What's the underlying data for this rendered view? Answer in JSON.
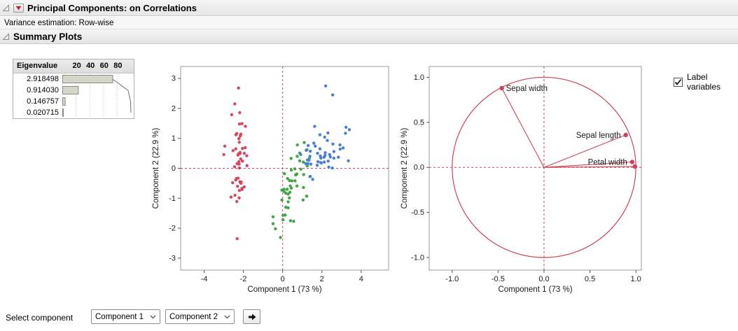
{
  "header": {
    "title": "Principal Components: on Correlations",
    "subtitle": "Variance estimation: Row-wise"
  },
  "summary": {
    "title": "Summary Plots"
  },
  "eigen": {
    "header_label": "Eigenvalue",
    "scale_max": 100,
    "scale_ticks": [
      "20",
      "40",
      "60",
      "80"
    ],
    "rows": [
      {
        "value": "2.918498",
        "pct": 72.96
      },
      {
        "value": "0.914030",
        "pct": 22.85
      },
      {
        "value": "0.146757",
        "pct": 3.67
      },
      {
        "value": "0.020715",
        "pct": 0.52
      }
    ],
    "cumulative_pct": [
      72.96,
      95.81,
      99.48,
      100
    ]
  },
  "controls": {
    "label_variables": "Label variables",
    "label_variables_checked": true
  },
  "footer": {
    "select_component_label": "Select component",
    "dropdown1": "Component 1",
    "dropdown2": "Component 2"
  },
  "chart_data": [
    {
      "id": "score-plot",
      "type": "scatter",
      "xlabel": "Component 1  (73 %)",
      "ylabel": "Component 2  (22.9 %)",
      "xlim": [
        -5.2,
        5.4
      ],
      "ylim": [
        -3.4,
        3.4
      ],
      "xticks": [
        -4,
        -2,
        0,
        2,
        4
      ],
      "xtick_labels": [
        "-4",
        "-2",
        "0",
        "2",
        "4"
      ],
      "yticks": [
        3,
        2,
        1,
        0,
        -1,
        -2,
        -3
      ],
      "ytick_labels": [
        "3",
        "2",
        "1",
        "0",
        "-1",
        "-2",
        "-3"
      ],
      "accent_color": "#cf4257",
      "reference_lines": {
        "x": 0,
        "y": 0,
        "style": "dashed"
      },
      "series": [
        {
          "name": "group-red",
          "color": "#d4495e",
          "points": [
            [
              -2.26,
              0.48
            ],
            [
              -2.08,
              -0.67
            ],
            [
              -2.36,
              -0.34
            ],
            [
              -2.3,
              -0.6
            ],
            [
              -2.39,
              0.65
            ],
            [
              -2.07,
              1.49
            ],
            [
              -2.45,
              0.05
            ],
            [
              -2.23,
              0.22
            ],
            [
              -2.34,
              -1.11
            ],
            [
              -2.18,
              -0.45
            ],
            [
              -2.16,
              1.08
            ],
            [
              -2.32,
              0.16
            ],
            [
              -2.21,
              -0.74
            ],
            [
              -2.63,
              -0.96
            ],
            [
              -2.19,
              1.86
            ],
            [
              -2.25,
              2.68
            ],
            [
              -2.2,
              1.48
            ],
            [
              -2.18,
              0.49
            ],
            [
              -1.9,
              1.4
            ],
            [
              -2.34,
              1.16
            ],
            [
              -1.91,
              0.69
            ],
            [
              -2.21,
              0.87
            ],
            [
              -3.0,
              0.46
            ],
            [
              -1.82,
              0.09
            ],
            [
              -2.22,
              0.14
            ],
            [
              -1.96,
              -0.62
            ],
            [
              -2.05,
              0.24
            ],
            [
              -2.17,
              0.53
            ],
            [
              -2.14,
              0.31
            ],
            [
              -2.27,
              -0.33
            ],
            [
              -2.13,
              -0.5
            ],
            [
              -1.83,
              0.42
            ],
            [
              -2.6,
              1.79
            ],
            [
              -2.44,
              2.15
            ],
            [
              -2.11,
              -0.46
            ],
            [
              -2.22,
              -0.99
            ],
            [
              -2.05,
              0.66
            ],
            [
              -2.53,
              0.59
            ],
            [
              -2.43,
              -0.9
            ],
            [
              -2.95,
              0.74
            ],
            [
              -2.28,
              0.44
            ],
            [
              -2.32,
              -2.35
            ],
            [
              -2.55,
              -0.48
            ],
            [
              -1.96,
              0.5
            ],
            [
              -2.13,
              1.14
            ],
            [
              -2.07,
              -0.71
            ],
            [
              -2.38,
              1.12
            ],
            [
              -2.39,
              -0.39
            ],
            [
              -2.23,
              0.99
            ],
            [
              -2.21,
              0.01
            ]
          ]
        },
        {
          "name": "group-green",
          "color": "#43a546",
          "points": [
            [
              1.1,
              0.86
            ],
            [
              0.73,
              -0.59
            ],
            [
              1.24,
              0.62
            ],
            [
              0.4,
              -1.75
            ],
            [
              1.07,
              -0.21
            ],
            [
              0.39,
              -0.59
            ],
            [
              0.75,
              0.78
            ],
            [
              -0.49,
              -1.85
            ],
            [
              0.93,
              -0.03
            ],
            [
              0.02,
              -1.72
            ],
            [
              -0.11,
              -2.31
            ],
            [
              0.44,
              -0.06
            ],
            [
              0.56,
              -1.77
            ],
            [
              0.72,
              -0.19
            ],
            [
              -0.04,
              -0.73
            ],
            [
              0.87,
              0.51
            ],
            [
              0.35,
              -0.41
            ],
            [
              0.16,
              -0.83
            ],
            [
              1.22,
              -0.93
            ],
            [
              0.16,
              -1.3
            ],
            [
              0.74,
              0.4
            ],
            [
              0.47,
              -0.42
            ],
            [
              1.23,
              -0.93
            ],
            [
              0.63,
              -0.42
            ],
            [
              0.7,
              -0.21
            ],
            [
              0.87,
              0.25
            ],
            [
              1.25,
              0.08
            ],
            [
              1.36,
              0.33
            ],
            [
              0.66,
              -0.22
            ],
            [
              -0.04,
              -1.06
            ],
            [
              0.13,
              -1.56
            ],
            [
              0.02,
              -1.57
            ],
            [
              0.07,
              -0.77
            ],
            [
              1.06,
              -0.64
            ],
            [
              0.25,
              -0.34
            ],
            [
              0.43,
              0.33
            ],
            [
              1.05,
              0.21
            ],
            [
              1.04,
              -1.06
            ],
            [
              0.07,
              -0.7
            ],
            [
              0.28,
              -1.32
            ],
            [
              0.28,
              -1.12
            ],
            [
              0.62,
              -0.02
            ],
            [
              0.34,
              -0.99
            ],
            [
              -0.37,
              -2.02
            ],
            [
              0.28,
              -0.86
            ],
            [
              0.09,
              -0.18
            ],
            [
              0.23,
              -0.7
            ],
            [
              0.44,
              -0.66
            ],
            [
              -0.49,
              -1.62
            ],
            [
              0.37,
              -0.8
            ]
          ]
        },
        {
          "name": "group-blue",
          "color": "#4b7fd6",
          "points": [
            [
              2.53,
              0.01
            ],
            [
              1.41,
              0.57
            ],
            [
              2.61,
              0.34
            ],
            [
              1.97,
              0.18
            ],
            [
              2.35,
              0.04
            ],
            [
              3.4,
              1.29
            ],
            [
              0.92,
              0.46
            ],
            [
              2.93,
              0.64
            ],
            [
              2.32,
              0.24
            ],
            [
              2.92,
              0.78
            ],
            [
              1.66,
              0.74
            ],
            [
              1.8,
              0.22
            ],
            [
              2.17,
              0.52
            ],
            [
              1.34,
              0.27
            ],
            [
              1.59,
              0.84
            ],
            [
              1.9,
              1.12
            ],
            [
              1.95,
              0.34
            ],
            [
              3.2,
              1.17
            ],
            [
              3.35,
              0.25
            ],
            [
              1.3,
              0.76
            ],
            [
              2.43,
              0.38
            ],
            [
              1.2,
              0.6
            ],
            [
              2.19,
              2.75
            ],
            [
              1.39,
              0.4
            ],
            [
              2.28,
              0.93
            ],
            [
              2.61,
              0.56
            ],
            [
              1.26,
              0.28
            ],
            [
              1.29,
              0.16
            ],
            [
              2.12,
              0.21
            ],
            [
              2.39,
              0.46
            ],
            [
              2.84,
              0.37
            ],
            [
              3.23,
              1.37
            ],
            [
              2.16,
              0.43
            ],
            [
              1.44,
              0.14
            ],
            [
              1.78,
              0.5
            ],
            [
              3.08,
              0.68
            ],
            [
              2.14,
              1.04
            ],
            [
              1.9,
              0.65
            ],
            [
              1.17,
              0.16
            ],
            [
              2.11,
              0.37
            ],
            [
              2.31,
              1.18
            ],
            [
              1.92,
              0.41
            ],
            [
              1.41,
              -0.27
            ],
            [
              2.56,
              0.81
            ],
            [
              2.55,
              2.45
            ],
            [
              1.94,
              0.19
            ],
            [
              1.53,
              -0.37
            ],
            [
              1.76,
              0.1
            ],
            [
              1.63,
              1.4
            ],
            [
              1.39,
              -0.28
            ]
          ]
        }
      ]
    },
    {
      "id": "loading-plot",
      "type": "scatter",
      "xlabel": "Component 1  (73 %)",
      "ylabel": "Component 2  (22.9 %)",
      "xlim": [
        -1.25,
        1.06
      ],
      "ylim": [
        -1.14,
        1.12
      ],
      "xticks": [
        -1,
        -0.5,
        0,
        0.5,
        1
      ],
      "xtick_labels": [
        "-1.0",
        "-0.5",
        "0.0",
        "0.5",
        "1.0"
      ],
      "yticks": [
        1,
        0.5,
        0,
        -0.5,
        -1
      ],
      "ytick_labels": [
        "1.0",
        "0.5",
        "0.0",
        "-0.5",
        "-1.0"
      ],
      "accent_color": "#cf4257",
      "reference_lines": {
        "x": 0,
        "y": 0,
        "style": "dashed"
      },
      "unit_circle": true,
      "vectors": [
        {
          "label": "Sepal width",
          "x": -0.46,
          "y": 0.88,
          "label_side": "right"
        },
        {
          "label": "Sepal length",
          "x": 0.89,
          "y": 0.36,
          "label_side": "left"
        },
        {
          "label": "Petal width",
          "x": 0.96,
          "y": 0.06,
          "label_side": "left"
        },
        {
          "label": "",
          "x": 0.99,
          "y": 0.01,
          "label_side": "left"
        }
      ]
    }
  ]
}
